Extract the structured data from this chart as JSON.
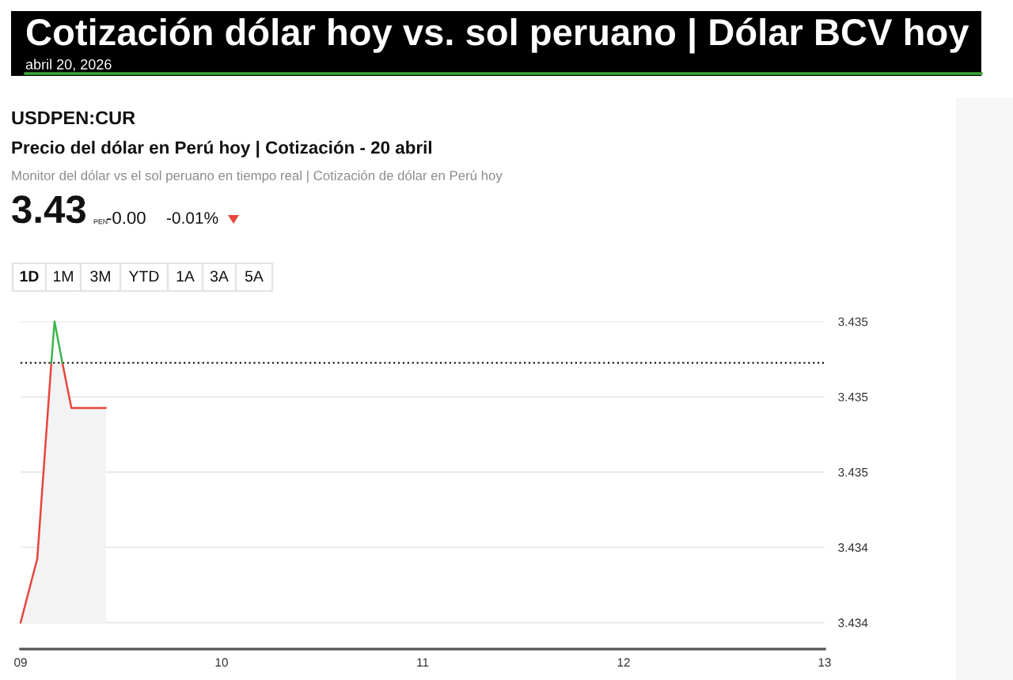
{
  "chart_data": {
    "type": "area",
    "title": "Cotización dólar hoy vs. sol peruano | Dólar BCV hoy",
    "subtitle": "abril 20, 2026",
    "annotations": [
      "USDPEN:CUR",
      "Precio del dólar en Perú hoy | Cotización - 20 abril",
      "Monitor del dólar vs el sol peruano en tiempo real | Cotización de dólar en Perú hoy",
      "3.43",
      "PEN",
      "-0.00",
      "-0.01%",
      "1D",
      "1M",
      "3M",
      "YTD",
      "1A",
      "3A",
      "5A"
    ],
    "series": [
      {
        "color": "#e8453c",
        "x": [
          9.0,
          9.083,
          9.153,
          9.169,
          9.208,
          9.253,
          9.424
        ],
        "values": [
          3.4342,
          3.43437,
          3.43489,
          null,
          3.43489,
          3.43477,
          3.43477
        ]
      },
      {
        "type": "line",
        "color": "#3cb44b",
        "x": [
          9.153,
          9.169,
          9.208
        ],
        "values": [
          3.43489,
          3.435,
          3.43489
        ]
      }
    ],
    "xlim": [
      9,
      13
    ],
    "xticks": [
      {
        "value": 9,
        "label": "09"
      },
      10,
      11,
      12,
      13
    ],
    "ylim": [
      3.43413,
      3.435
    ],
    "yticks": [
      {
        "value": 3.4342,
        "label": "3.434"
      },
      {
        "value": 3.4344,
        "label": "3.434"
      },
      {
        "value": 3.4346,
        "label": "3.435"
      },
      {
        "value": 3.4348,
        "label": "3.435"
      },
      {
        "value": 3.435,
        "label": "3.435"
      }
    ],
    "ref_lines": [
      {
        "axis": "y",
        "value": 3.43489,
        "color": "#222222",
        "line_style": "dotted"
      }
    ],
    "grid": "y"
  }
}
